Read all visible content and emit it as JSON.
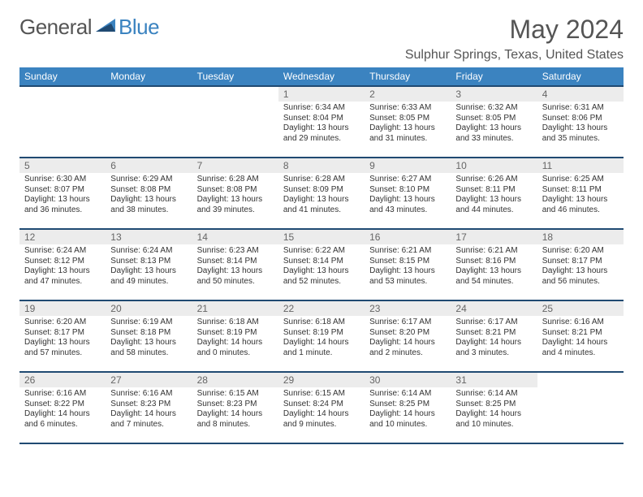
{
  "brand": {
    "part1": "General",
    "part2": "Blue"
  },
  "title": "May 2024",
  "location": "Sulphur Springs, Texas, United States",
  "colors": {
    "header_bg": "#3b83c0",
    "header_border": "#204a72",
    "daynum_bg": "#ececec",
    "text": "#333333",
    "muted": "#555555"
  },
  "dayNames": [
    "Sunday",
    "Monday",
    "Tuesday",
    "Wednesday",
    "Thursday",
    "Friday",
    "Saturday"
  ],
  "weeks": [
    [
      {
        "empty": true
      },
      {
        "empty": true
      },
      {
        "empty": true
      },
      {
        "num": "1",
        "sunrise": "6:34 AM",
        "sunset": "8:04 PM",
        "daylight": "13 hours and 29 minutes."
      },
      {
        "num": "2",
        "sunrise": "6:33 AM",
        "sunset": "8:05 PM",
        "daylight": "13 hours and 31 minutes."
      },
      {
        "num": "3",
        "sunrise": "6:32 AM",
        "sunset": "8:05 PM",
        "daylight": "13 hours and 33 minutes."
      },
      {
        "num": "4",
        "sunrise": "6:31 AM",
        "sunset": "8:06 PM",
        "daylight": "13 hours and 35 minutes."
      }
    ],
    [
      {
        "num": "5",
        "sunrise": "6:30 AM",
        "sunset": "8:07 PM",
        "daylight": "13 hours and 36 minutes."
      },
      {
        "num": "6",
        "sunrise": "6:29 AM",
        "sunset": "8:08 PM",
        "daylight": "13 hours and 38 minutes."
      },
      {
        "num": "7",
        "sunrise": "6:28 AM",
        "sunset": "8:08 PM",
        "daylight": "13 hours and 39 minutes."
      },
      {
        "num": "8",
        "sunrise": "6:28 AM",
        "sunset": "8:09 PM",
        "daylight": "13 hours and 41 minutes."
      },
      {
        "num": "9",
        "sunrise": "6:27 AM",
        "sunset": "8:10 PM",
        "daylight": "13 hours and 43 minutes."
      },
      {
        "num": "10",
        "sunrise": "6:26 AM",
        "sunset": "8:11 PM",
        "daylight": "13 hours and 44 minutes."
      },
      {
        "num": "11",
        "sunrise": "6:25 AM",
        "sunset": "8:11 PM",
        "daylight": "13 hours and 46 minutes."
      }
    ],
    [
      {
        "num": "12",
        "sunrise": "6:24 AM",
        "sunset": "8:12 PM",
        "daylight": "13 hours and 47 minutes."
      },
      {
        "num": "13",
        "sunrise": "6:24 AM",
        "sunset": "8:13 PM",
        "daylight": "13 hours and 49 minutes."
      },
      {
        "num": "14",
        "sunrise": "6:23 AM",
        "sunset": "8:14 PM",
        "daylight": "13 hours and 50 minutes."
      },
      {
        "num": "15",
        "sunrise": "6:22 AM",
        "sunset": "8:14 PM",
        "daylight": "13 hours and 52 minutes."
      },
      {
        "num": "16",
        "sunrise": "6:21 AM",
        "sunset": "8:15 PM",
        "daylight": "13 hours and 53 minutes."
      },
      {
        "num": "17",
        "sunrise": "6:21 AM",
        "sunset": "8:16 PM",
        "daylight": "13 hours and 54 minutes."
      },
      {
        "num": "18",
        "sunrise": "6:20 AM",
        "sunset": "8:17 PM",
        "daylight": "13 hours and 56 minutes."
      }
    ],
    [
      {
        "num": "19",
        "sunrise": "6:20 AM",
        "sunset": "8:17 PM",
        "daylight": "13 hours and 57 minutes."
      },
      {
        "num": "20",
        "sunrise": "6:19 AM",
        "sunset": "8:18 PM",
        "daylight": "13 hours and 58 minutes."
      },
      {
        "num": "21",
        "sunrise": "6:18 AM",
        "sunset": "8:19 PM",
        "daylight": "14 hours and 0 minutes."
      },
      {
        "num": "22",
        "sunrise": "6:18 AM",
        "sunset": "8:19 PM",
        "daylight": "14 hours and 1 minute."
      },
      {
        "num": "23",
        "sunrise": "6:17 AM",
        "sunset": "8:20 PM",
        "daylight": "14 hours and 2 minutes."
      },
      {
        "num": "24",
        "sunrise": "6:17 AM",
        "sunset": "8:21 PM",
        "daylight": "14 hours and 3 minutes."
      },
      {
        "num": "25",
        "sunrise": "6:16 AM",
        "sunset": "8:21 PM",
        "daylight": "14 hours and 4 minutes."
      }
    ],
    [
      {
        "num": "26",
        "sunrise": "6:16 AM",
        "sunset": "8:22 PM",
        "daylight": "14 hours and 6 minutes."
      },
      {
        "num": "27",
        "sunrise": "6:16 AM",
        "sunset": "8:23 PM",
        "daylight": "14 hours and 7 minutes."
      },
      {
        "num": "28",
        "sunrise": "6:15 AM",
        "sunset": "8:23 PM",
        "daylight": "14 hours and 8 minutes."
      },
      {
        "num": "29",
        "sunrise": "6:15 AM",
        "sunset": "8:24 PM",
        "daylight": "14 hours and 9 minutes."
      },
      {
        "num": "30",
        "sunrise": "6:14 AM",
        "sunset": "8:25 PM",
        "daylight": "14 hours and 10 minutes."
      },
      {
        "num": "31",
        "sunrise": "6:14 AM",
        "sunset": "8:25 PM",
        "daylight": "14 hours and 10 minutes."
      },
      {
        "empty": true
      }
    ]
  ]
}
